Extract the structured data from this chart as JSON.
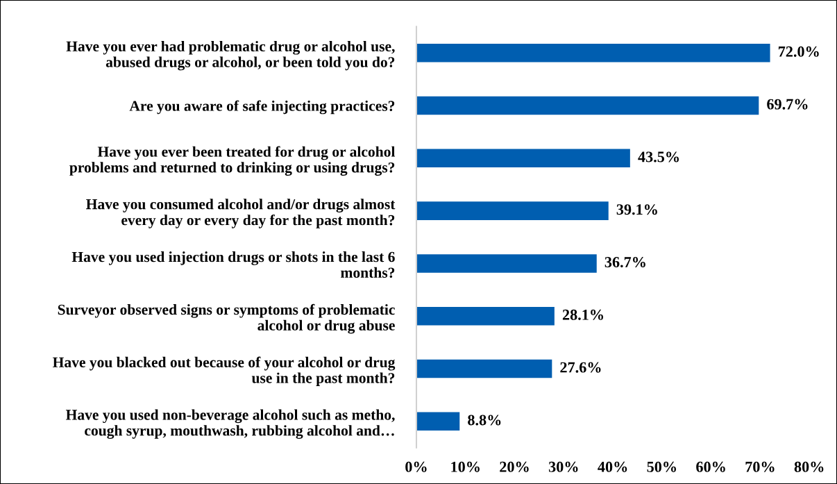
{
  "chart_data": {
    "type": "bar",
    "orientation": "horizontal",
    "categories": [
      "Have you ever had problematic drug or alcohol use,\nabused drugs or alcohol, or been told you do?",
      "Are you aware of safe injecting practices?",
      "Have you ever been treated for drug or alcohol\nproblems and returned to drinking or using drugs?",
      "Have you consumed alcohol and/or drugs almost\nevery day or every day for the past month?",
      "Have you used injection drugs or shots in the last 6\nmonths?",
      "Surveyor observed signs or symptoms of problematic\nalcohol or drug abuse",
      "Have you blacked out because of your alcohol or drug\nuse in the past month?",
      "Have you used non-beverage alcohol such as metho,\ncough syrup, mouthwash, rubbing alcohol and…"
    ],
    "values": [
      72.0,
      69.7,
      43.5,
      39.1,
      36.7,
      28.1,
      27.6,
      8.8
    ],
    "value_labels": [
      "72.0%",
      "69.7%",
      "43.5%",
      "39.1%",
      "36.7%",
      "28.1%",
      "27.6%",
      "8.8%"
    ],
    "color": "#005eb0",
    "xlim": [
      0,
      80
    ],
    "xticks": [
      {
        "value": 0,
        "label": "0%"
      },
      {
        "value": 10,
        "label": "10%"
      },
      {
        "value": 20,
        "label": "20%"
      },
      {
        "value": 30,
        "label": "30%"
      },
      {
        "value": 40,
        "label": "40%"
      },
      {
        "value": 50,
        "label": "50%"
      },
      {
        "value": 60,
        "label": "60%"
      },
      {
        "value": 70,
        "label": "70%"
      },
      {
        "value": 80,
        "label": "80%"
      }
    ],
    "grid": false,
    "legend": false
  }
}
